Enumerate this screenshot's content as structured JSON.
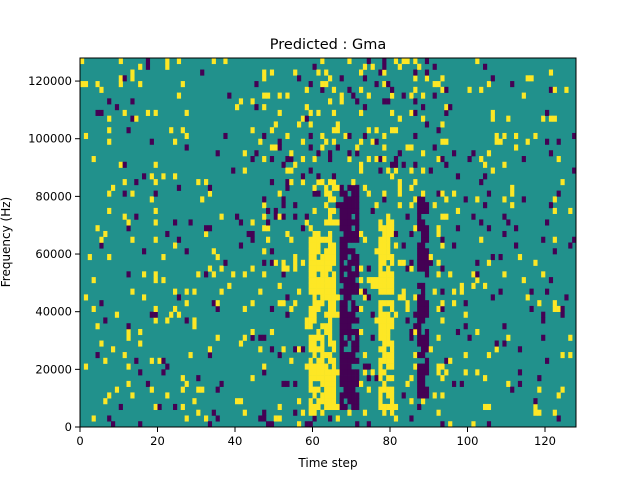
{
  "chart_data": {
    "type": "heatmap",
    "title": "Predicted : Gma",
    "xlabel": "Time step",
    "ylabel": "Frequency (Hz)",
    "xlim": [
      0,
      128
    ],
    "ylim": [
      0,
      128000
    ],
    "x_ticks": [
      0,
      20,
      40,
      60,
      80,
      100,
      120
    ],
    "y_ticks": [
      0,
      20000,
      40000,
      60000,
      80000,
      100000,
      120000
    ],
    "x_tick_labels": [
      "0",
      "20",
      "40",
      "60",
      "80",
      "100",
      "120"
    ],
    "y_tick_labels": [
      "0",
      "20000",
      "40000",
      "60000",
      "80000",
      "100000",
      "120000"
    ],
    "grid": false,
    "n_time_steps": 128,
    "n_freq_bins": 64,
    "value_range": [
      -1,
      1
    ],
    "colors": {
      "background": "#21918c",
      "low": "#440154",
      "high": "#fde725"
    },
    "low_value_columns": [
      {
        "x": [
          67,
          71
        ],
        "y": [
          6000,
          82000
        ]
      },
      {
        "x": [
          87,
          89
        ],
        "y": [
          10000,
          78000
        ]
      }
    ],
    "high_value_columns": [
      {
        "x": [
          59,
          62
        ],
        "y": [
          4000,
          66000
        ]
      },
      {
        "x": [
          63,
          65
        ],
        "y": [
          6000,
          84000
        ]
      },
      {
        "x": [
          77,
          80
        ],
        "y": [
          4000,
          70000
        ]
      }
    ]
  }
}
